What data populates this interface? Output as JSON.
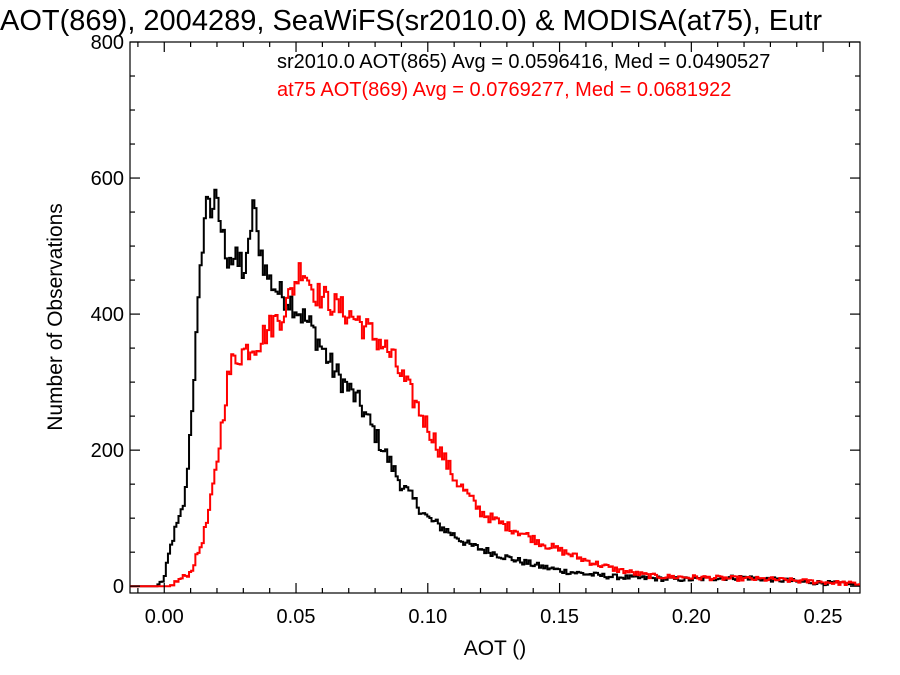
{
  "chart_data": {
    "type": "line",
    "title": "AOT(869), 2004289, SeaWiFS(sr2010.0) & MODISA(at75), Eutr",
    "xlabel": "AOT ()",
    "ylabel": "Number of Observations",
    "xlim": [
      -0.013,
      0.264
    ],
    "ylim": [
      -10,
      800
    ],
    "x_ticks": [
      0.0,
      0.05,
      0.1,
      0.15,
      0.2,
      0.25
    ],
    "x_tick_labels": [
      "0.00",
      "0.05",
      "0.10",
      "0.15",
      "0.20",
      "0.25"
    ],
    "y_ticks": [
      0,
      200,
      400,
      600,
      800
    ],
    "y_tick_labels": [
      "0",
      "200",
      "400",
      "600",
      "800"
    ],
    "grid": false,
    "step": "histogram",
    "series": [
      {
        "name": "sr2010.0 AOT(865) Avg = 0.0596416, Med = 0.0490527",
        "color": "#000000",
        "points": [
          [
            -0.012,
            0
          ],
          [
            -0.003,
            0
          ],
          [
            0.0,
            10
          ],
          [
            0.002,
            50
          ],
          [
            0.004,
            80
          ],
          [
            0.006,
            100
          ],
          [
            0.008,
            130
          ],
          [
            0.009,
            180
          ],
          [
            0.01,
            230
          ],
          [
            0.011,
            290
          ],
          [
            0.012,
            350
          ],
          [
            0.013,
            410
          ],
          [
            0.014,
            470
          ],
          [
            0.015,
            530
          ],
          [
            0.016,
            560
          ],
          [
            0.017,
            575
          ],
          [
            0.018,
            545
          ],
          [
            0.019,
            570
          ],
          [
            0.02,
            560
          ],
          [
            0.021,
            540
          ],
          [
            0.022,
            520
          ],
          [
            0.023,
            505
          ],
          [
            0.024,
            480
          ],
          [
            0.025,
            490
          ],
          [
            0.026,
            475
          ],
          [
            0.027,
            485
          ],
          [
            0.028,
            470
          ],
          [
            0.029,
            480
          ],
          [
            0.03,
            460
          ],
          [
            0.031,
            465
          ],
          [
            0.032,
            490
          ],
          [
            0.033,
            530
          ],
          [
            0.034,
            575
          ],
          [
            0.035,
            520
          ],
          [
            0.036,
            505
          ],
          [
            0.037,
            490
          ],
          [
            0.038,
            470
          ],
          [
            0.04,
            450
          ],
          [
            0.042,
            440
          ],
          [
            0.044,
            430
          ],
          [
            0.046,
            425
          ],
          [
            0.048,
            420
          ],
          [
            0.05,
            410
          ],
          [
            0.052,
            400
          ],
          [
            0.054,
            390
          ],
          [
            0.056,
            380
          ],
          [
            0.058,
            365
          ],
          [
            0.06,
            350
          ],
          [
            0.062,
            335
          ],
          [
            0.064,
            320
          ],
          [
            0.066,
            310
          ],
          [
            0.068,
            300
          ],
          [
            0.07,
            290
          ],
          [
            0.072,
            280
          ],
          [
            0.074,
            270
          ],
          [
            0.076,
            255
          ],
          [
            0.078,
            240
          ],
          [
            0.08,
            225
          ],
          [
            0.082,
            210
          ],
          [
            0.084,
            195
          ],
          [
            0.086,
            180
          ],
          [
            0.088,
            165
          ],
          [
            0.09,
            150
          ],
          [
            0.092,
            140
          ],
          [
            0.094,
            130
          ],
          [
            0.096,
            120
          ],
          [
            0.098,
            110
          ],
          [
            0.1,
            100
          ],
          [
            0.102,
            95
          ],
          [
            0.104,
            90
          ],
          [
            0.106,
            85
          ],
          [
            0.108,
            80
          ],
          [
            0.11,
            75
          ],
          [
            0.112,
            70
          ],
          [
            0.114,
            65
          ],
          [
            0.116,
            60
          ],
          [
            0.118,
            58
          ],
          [
            0.12,
            55
          ],
          [
            0.124,
            50
          ],
          [
            0.128,
            45
          ],
          [
            0.132,
            40
          ],
          [
            0.136,
            36
          ],
          [
            0.14,
            32
          ],
          [
            0.144,
            28
          ],
          [
            0.148,
            25
          ],
          [
            0.152,
            22
          ],
          [
            0.156,
            20
          ],
          [
            0.16,
            18
          ],
          [
            0.165,
            16
          ],
          [
            0.17,
            14
          ],
          [
            0.175,
            13
          ],
          [
            0.18,
            12
          ],
          [
            0.19,
            11
          ],
          [
            0.2,
            10
          ],
          [
            0.21,
            12
          ],
          [
            0.22,
            13
          ],
          [
            0.23,
            10
          ],
          [
            0.24,
            7
          ],
          [
            0.25,
            5
          ],
          [
            0.26,
            3
          ],
          [
            0.264,
            2
          ]
        ]
      },
      {
        "name": "at75 AOT(869) Avg = 0.0769277, Med = 0.0681922",
        "color": "#ff0000",
        "points": [
          [
            -0.012,
            0
          ],
          [
            0.002,
            0
          ],
          [
            0.006,
            10
          ],
          [
            0.01,
            20
          ],
          [
            0.012,
            40
          ],
          [
            0.014,
            60
          ],
          [
            0.016,
            90
          ],
          [
            0.018,
            130
          ],
          [
            0.02,
            180
          ],
          [
            0.022,
            240
          ],
          [
            0.024,
            300
          ],
          [
            0.026,
            330
          ],
          [
            0.028,
            340
          ],
          [
            0.03,
            345
          ],
          [
            0.032,
            350
          ],
          [
            0.034,
            355
          ],
          [
            0.036,
            360
          ],
          [
            0.038,
            370
          ],
          [
            0.04,
            380
          ],
          [
            0.042,
            390
          ],
          [
            0.044,
            395
          ],
          [
            0.046,
            410
          ],
          [
            0.048,
            430
          ],
          [
            0.05,
            450
          ],
          [
            0.052,
            470
          ],
          [
            0.054,
            460
          ],
          [
            0.056,
            440
          ],
          [
            0.058,
            430
          ],
          [
            0.06,
            425
          ],
          [
            0.062,
            420
          ],
          [
            0.064,
            415
          ],
          [
            0.066,
            410
          ],
          [
            0.068,
            405
          ],
          [
            0.07,
            400
          ],
          [
            0.072,
            395
          ],
          [
            0.074,
            390
          ],
          [
            0.076,
            380
          ],
          [
            0.078,
            375
          ],
          [
            0.08,
            365
          ],
          [
            0.082,
            360
          ],
          [
            0.084,
            350
          ],
          [
            0.086,
            340
          ],
          [
            0.088,
            325
          ],
          [
            0.09,
            310
          ],
          [
            0.092,
            295
          ],
          [
            0.094,
            280
          ],
          [
            0.096,
            265
          ],
          [
            0.098,
            250
          ],
          [
            0.1,
            235
          ],
          [
            0.102,
            220
          ],
          [
            0.104,
            205
          ],
          [
            0.106,
            190
          ],
          [
            0.108,
            175
          ],
          [
            0.11,
            160
          ],
          [
            0.112,
            150
          ],
          [
            0.114,
            140
          ],
          [
            0.116,
            130
          ],
          [
            0.118,
            120
          ],
          [
            0.12,
            110
          ],
          [
            0.124,
            100
          ],
          [
            0.128,
            92
          ],
          [
            0.132,
            85
          ],
          [
            0.136,
            78
          ],
          [
            0.14,
            70
          ],
          [
            0.144,
            62
          ],
          [
            0.148,
            56
          ],
          [
            0.152,
            50
          ],
          [
            0.156,
            44
          ],
          [
            0.16,
            38
          ],
          [
            0.165,
            32
          ],
          [
            0.17,
            26
          ],
          [
            0.175,
            22
          ],
          [
            0.18,
            18
          ],
          [
            0.185,
            15
          ],
          [
            0.19,
            14
          ],
          [
            0.2,
            13
          ],
          [
            0.21,
            12
          ],
          [
            0.22,
            11
          ],
          [
            0.23,
            10
          ],
          [
            0.24,
            8
          ],
          [
            0.25,
            6
          ],
          [
            0.26,
            4
          ],
          [
            0.264,
            3
          ]
        ]
      }
    ]
  }
}
